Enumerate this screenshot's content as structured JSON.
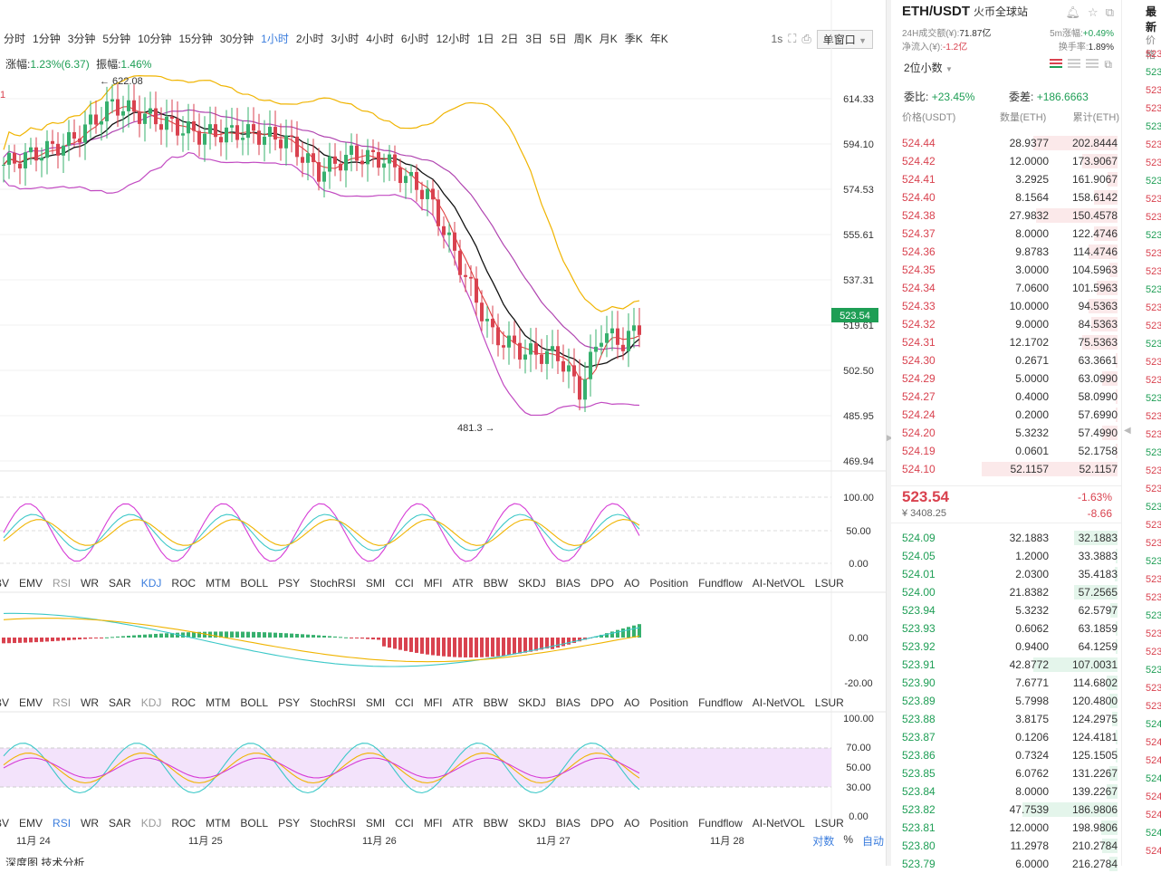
{
  "timeframes": [
    "分时",
    "1分钟",
    "3分钟",
    "5分钟",
    "10分钟",
    "15分钟",
    "30分钟",
    "1小时",
    "2小时",
    "3小时",
    "4小时",
    "6小时",
    "12小时",
    "1日",
    "2日",
    "3日",
    "5日",
    "周K",
    "月K",
    "季K",
    "年K"
  ],
  "active_timeframe": "1小时",
  "toolbar": {
    "interval": "1s",
    "window_mode": "单窗口"
  },
  "amplitude": {
    "change_label": "涨幅:",
    "change_value": "1.23%(6.37)",
    "swing_label": "振幅:",
    "swing_value": "1.46%"
  },
  "main_chart": {
    "y_ticks": [
      "614.33",
      "594.10",
      "574.53",
      "555.61",
      "537.31",
      "519.61",
      "502.50",
      "485.95",
      "469.94"
    ],
    "last_price_tag": "523.54",
    "high_marker": "← 622.08",
    "low_marker": "481.3 →",
    "left_edge_label": "1"
  },
  "chart_data": {
    "type": "candlestick",
    "title": "ETH/USDT 1小时",
    "x_labels": [
      "11月 24",
      "11月 25",
      "11月 26",
      "11月 27",
      "11月 28"
    ],
    "y_range": [
      469.94,
      614.33
    ],
    "high": 622.08,
    "low": 481.3,
    "last": 523.54,
    "overlays": [
      "upper band",
      "middle band",
      "lower band",
      "MA short",
      "MA long"
    ],
    "panels": [
      {
        "name": "KDJ",
        "ticks": [
          "100.00",
          "50.00",
          "0.00"
        ]
      },
      {
        "name": "MACD",
        "ticks": [
          "0.00",
          "-20.00"
        ]
      },
      {
        "name": "RSI",
        "ticks": [
          "100.00",
          "70.00",
          "50.00",
          "30.00",
          "0.00"
        ]
      }
    ]
  },
  "indicators": [
    "BV",
    "EMV",
    "RSI",
    "WR",
    "SAR",
    "KDJ",
    "ROC",
    "MTM",
    "BOLL",
    "PSY",
    "StochRSI",
    "SMI",
    "CCI",
    "MFI",
    "ATR",
    "BBW",
    "SKDJ",
    "BIAS",
    "DPO",
    "AO",
    "Position",
    "Fundflow",
    "AI-NetVOL",
    "LSUR"
  ],
  "panel1_active": "KDJ",
  "panel2_active": "",
  "panel3_active": "RSI",
  "panel1_ticks": [
    "100.00",
    "50.00",
    "0.00"
  ],
  "panel2_ticks": [
    "0.00",
    "-20.00"
  ],
  "panel3_ticks": [
    "100.00",
    "70.00",
    "50.00",
    "30.00",
    "0.00"
  ],
  "x_axis": [
    "11月 24",
    "11月 25",
    "11月 26",
    "11月 27",
    "11月 28"
  ],
  "bottom_right": {
    "log": "对数",
    "pct": "%",
    "auto": "自动"
  },
  "bottom_tabs": "深度图    技术分析",
  "market": {
    "pair": "ETH/USDT",
    "exchange": "火币全球站",
    "vol_label": "24H成交额(¥):",
    "vol": "71.87亿",
    "rise_label": "5m涨幅:",
    "rise": "+0.49%",
    "flow_label": "净流入(¥):",
    "flow": "-1.2亿",
    "turnover_label": "换手率:",
    "turnover": "1.89%"
  },
  "orderbook": {
    "decimals": "2位小数",
    "ratio_label": "委比:",
    "ratio": "+23.45%",
    "diff_label": "委差:",
    "diff": "+186.6663",
    "cols": [
      "价格(USDT)",
      "数量(ETH)",
      "累计(ETH)"
    ],
    "asks": [
      {
        "p": "524.44",
        "q": "28.9377",
        "c": "202.8444",
        "w": 0.62
      },
      {
        "p": "524.42",
        "q": "12.0000",
        "c": "173.9067",
        "w": 0.26
      },
      {
        "p": "524.41",
        "q": "3.2925",
        "c": "161.9067",
        "w": 0.07
      },
      {
        "p": "524.40",
        "q": "8.1564",
        "c": "158.6142",
        "w": 0.17
      },
      {
        "p": "524.38",
        "q": "27.9832",
        "c": "150.4578",
        "w": 0.6
      },
      {
        "p": "524.37",
        "q": "8.0000",
        "c": "122.4746",
        "w": 0.17
      },
      {
        "p": "524.36",
        "q": "9.8783",
        "c": "114.4746",
        "w": 0.21
      },
      {
        "p": "524.35",
        "q": "3.0000",
        "c": "104.5963",
        "w": 0.06
      },
      {
        "p": "524.34",
        "q": "7.0600",
        "c": "101.5963",
        "w": 0.15
      },
      {
        "p": "524.33",
        "q": "10.0000",
        "c": "94.5363",
        "w": 0.21
      },
      {
        "p": "524.32",
        "q": "9.0000",
        "c": "84.5363",
        "w": 0.19
      },
      {
        "p": "524.31",
        "q": "12.1702",
        "c": "75.5363",
        "w": 0.26
      },
      {
        "p": "524.30",
        "q": "0.2671",
        "c": "63.3661",
        "w": 0.01
      },
      {
        "p": "524.29",
        "q": "5.0000",
        "c": "63.0990",
        "w": 0.11
      },
      {
        "p": "524.27",
        "q": "0.4000",
        "c": "58.0990",
        "w": 0.01
      },
      {
        "p": "524.24",
        "q": "0.2000",
        "c": "57.6990",
        "w": 0.01
      },
      {
        "p": "524.20",
        "q": "5.3232",
        "c": "57.4990",
        "w": 0.11
      },
      {
        "p": "524.19",
        "q": "0.0601",
        "c": "52.1758",
        "w": 0.01
      },
      {
        "p": "524.10",
        "q": "52.1157",
        "c": "52.1157",
        "w": 1.0
      }
    ],
    "mid": {
      "price": "523.54",
      "cny": "¥ 3408.25",
      "pct": "-1.63%",
      "chg": "-8.66"
    },
    "bids": [
      {
        "p": "524.09",
        "q": "32.1883",
        "c": "32.1883",
        "w": 0.32
      },
      {
        "p": "524.05",
        "q": "1.2000",
        "c": "33.3883",
        "w": 0.01
      },
      {
        "p": "524.01",
        "q": "2.0300",
        "c": "35.4183",
        "w": 0.02
      },
      {
        "p": "524.00",
        "q": "21.8382",
        "c": "57.2565",
        "w": 0.32
      },
      {
        "p": "523.94",
        "q": "5.3232",
        "c": "62.5797",
        "w": 0.05
      },
      {
        "p": "523.93",
        "q": "0.6062",
        "c": "63.1859",
        "w": 0.01
      },
      {
        "p": "523.92",
        "q": "0.9400",
        "c": "64.1259",
        "w": 0.01
      },
      {
        "p": "523.91",
        "q": "42.8772",
        "c": "107.0031",
        "w": 0.62
      },
      {
        "p": "523.90",
        "q": "7.6771",
        "c": "114.6802",
        "w": 0.08
      },
      {
        "p": "523.89",
        "q": "5.7998",
        "c": "120.4800",
        "w": 0.06
      },
      {
        "p": "523.88",
        "q": "3.8175",
        "c": "124.2975",
        "w": 0.04
      },
      {
        "p": "523.87",
        "q": "0.1206",
        "c": "124.4181",
        "w": 0.01
      },
      {
        "p": "523.86",
        "q": "0.7324",
        "c": "125.1505",
        "w": 0.01
      },
      {
        "p": "523.85",
        "q": "6.0762",
        "c": "131.2267",
        "w": 0.06
      },
      {
        "p": "523.84",
        "q": "8.0000",
        "c": "139.2267",
        "w": 0.08
      },
      {
        "p": "523.82",
        "q": "47.7539",
        "c": "186.9806",
        "w": 0.7
      },
      {
        "p": "523.81",
        "q": "12.0000",
        "c": "198.9806",
        "w": 0.12
      },
      {
        "p": "523.80",
        "q": "11.2978",
        "c": "210.2784",
        "w": 0.11
      },
      {
        "p": "523.79",
        "q": "6.0000",
        "c": "216.2784",
        "w": 0.06
      }
    ]
  },
  "right_strip": {
    "title": "最新",
    "col": "价格",
    "prices": [
      "523",
      "523",
      "523",
      "523",
      "523",
      "523",
      "523",
      "523",
      "523",
      "523",
      "523",
      "523",
      "523",
      "523",
      "523",
      "523",
      "523",
      "523",
      "523",
      "523",
      "523",
      "523",
      "523",
      "523",
      "523",
      "523",
      "523",
      "523",
      "523",
      "523",
      "523",
      "523",
      "523",
      "523",
      "523",
      "523",
      "523",
      "524",
      "524",
      "524",
      "524",
      "524",
      "524",
      "524",
      "524"
    ]
  }
}
